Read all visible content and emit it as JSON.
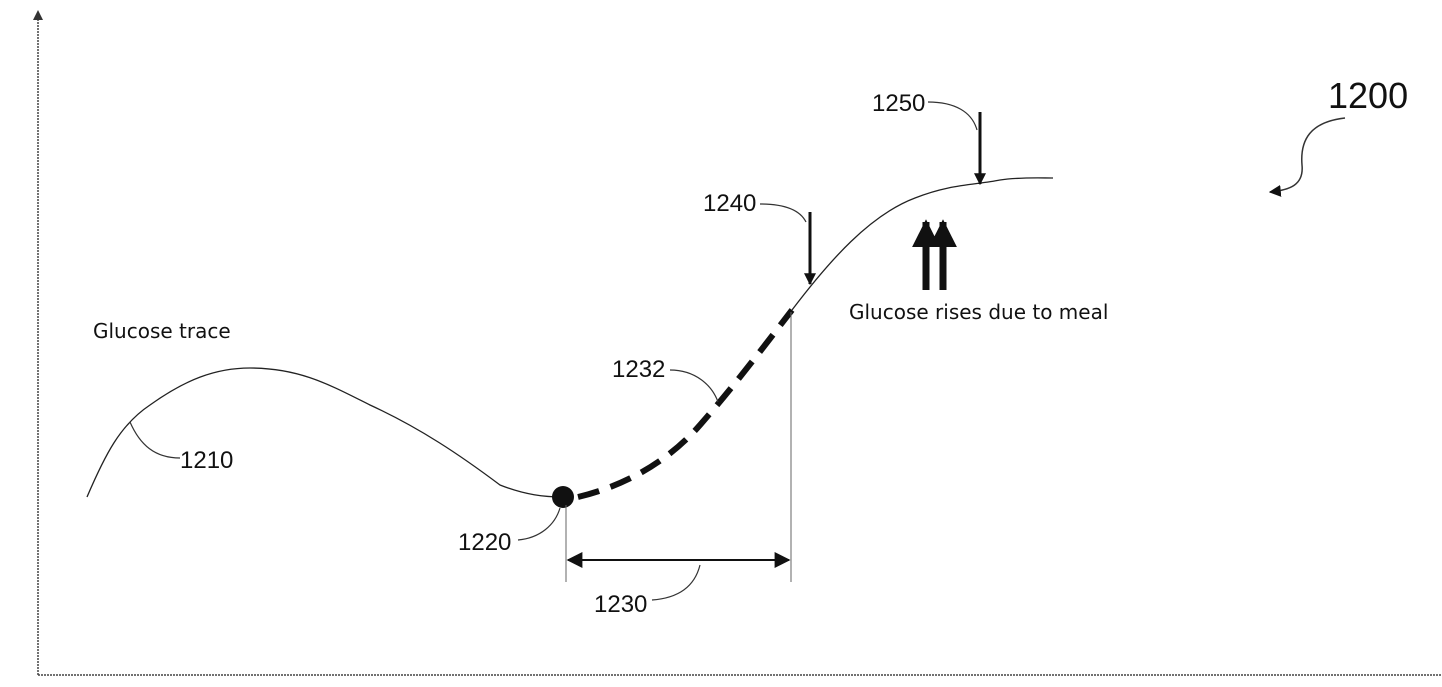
{
  "figure_number": "1200",
  "trace_label": "Glucose trace",
  "annotation": "Glucose rises due to meal",
  "refs": {
    "trace": "1210",
    "start_point": "1220",
    "interval": "1230",
    "fitted_segment": "1232",
    "first_marker": "1240",
    "second_marker": "1250"
  }
}
